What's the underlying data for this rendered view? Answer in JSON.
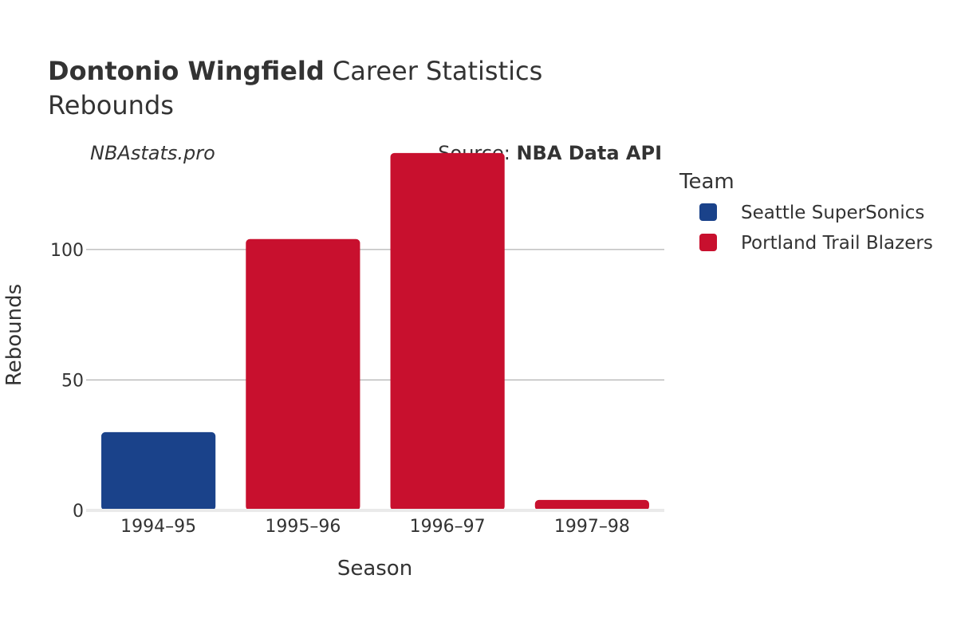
{
  "title": {
    "bold": "Dontonio Wingfield",
    "rest": " Career Statistics",
    "subtitle": "Rebounds"
  },
  "watermark": "NBAstats.pro",
  "source": {
    "prefix": "Source: ",
    "name": "NBA Data API"
  },
  "legend": {
    "title": "Team"
  },
  "chart_data": {
    "type": "bar",
    "categories": [
      "1994–95",
      "1995–96",
      "1996–97",
      "1997–98"
    ],
    "values": [
      30,
      104,
      137,
      4
    ],
    "teams": [
      "Seattle SuperSonics",
      "Portland Trail Blazers",
      "Portland Trail Blazers",
      "Portland Trail Blazers"
    ],
    "series": [
      {
        "name": "Seattle SuperSonics",
        "color": "#1a428a"
      },
      {
        "name": "Portland Trail Blazers",
        "color": "#c8102e"
      }
    ],
    "xlabel": "Season",
    "ylabel": "Rebounds",
    "ylim": [
      0,
      140
    ],
    "yticks": [
      0,
      50,
      100
    ],
    "grid": true,
    "legend_position": "right"
  }
}
